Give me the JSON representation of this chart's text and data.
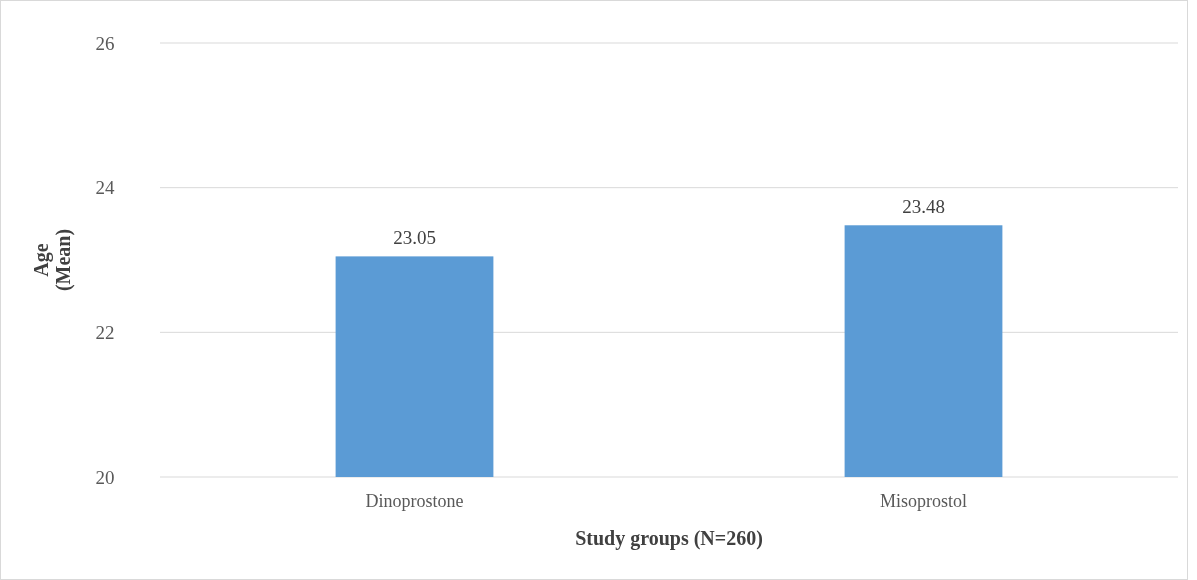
{
  "chart_data": {
    "type": "bar",
    "xlabel": "Study groups (N=260)",
    "ylabel": "Age (Mean)",
    "categories": [
      "Dinoprostone",
      "Misoprostol"
    ],
    "values": [
      23.05,
      23.48
    ],
    "color": "#5b9bd5",
    "ylim": [
      20,
      26
    ],
    "yticks": [
      20,
      22,
      24,
      26
    ],
    "grid": "y",
    "data_labels": true
  }
}
